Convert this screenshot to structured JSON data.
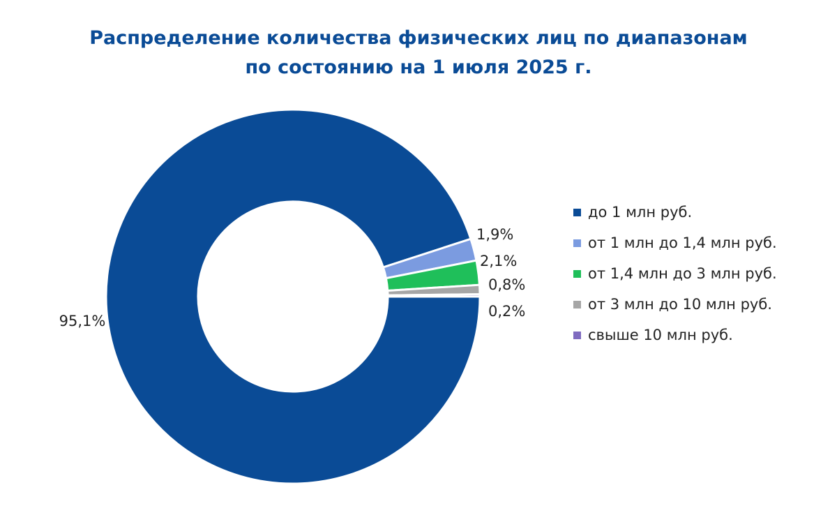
{
  "chart_data": {
    "type": "pie",
    "donut": true,
    "title": "Распределение количества физических лиц по диапазонам",
    "subtitle": "по состоянию на 1 июля 2025 г.",
    "categories": [
      "до 1 млн руб.",
      "от 1 млн до 1,4 млн руб.",
      "от 1,4 млн до 3 млн руб.",
      "от 3 млн до 10 млн руб.",
      "свыше 10 млн руб."
    ],
    "values": [
      95.1,
      1.9,
      2.1,
      0.8,
      0.2
    ],
    "value_labels": [
      "95,1%",
      "1,9%",
      "2,1%",
      "0,8%",
      "0,2%"
    ],
    "unit": "%",
    "colors": [
      "#0a4b96",
      "#7b9be0",
      "#1fbf5a",
      "#a6a6a6",
      "#7f6bc0"
    ],
    "legend_position": "right"
  }
}
